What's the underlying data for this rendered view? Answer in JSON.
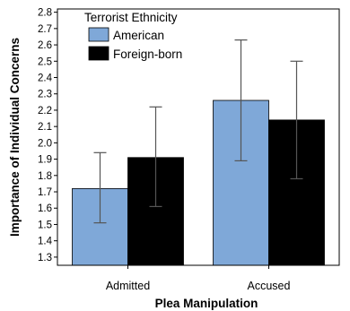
{
  "chart_data": {
    "type": "bar",
    "xlabel": "Plea Manipulation",
    "ylabel": "Importance of Individual Concerns",
    "categories": [
      "Admitted",
      "Accused"
    ],
    "ylim": [
      1.25,
      2.82
    ],
    "yticks": [
      "1.3",
      "1.4",
      "1.5",
      "1.6",
      "1.7",
      "1.8",
      "1.9",
      "2.0",
      "2.1",
      "2.2",
      "2.3",
      "2.4",
      "2.5",
      "2.6",
      "2.7",
      "2.8"
    ],
    "legend": {
      "title": "Terrorist Ethnicity",
      "placement": "top-left"
    },
    "series": [
      {
        "name": "American",
        "color": "#7fa8d8",
        "values": [
          1.72,
          2.26
        ],
        "error_low": [
          1.51,
          1.89
        ],
        "error_high": [
          1.94,
          2.63
        ]
      },
      {
        "name": "Foreign-born",
        "color": "#000000",
        "values": [
          1.91,
          2.14
        ],
        "error_low": [
          1.61,
          1.78
        ],
        "error_high": [
          2.22,
          2.5
        ]
      }
    ],
    "grid": false
  }
}
